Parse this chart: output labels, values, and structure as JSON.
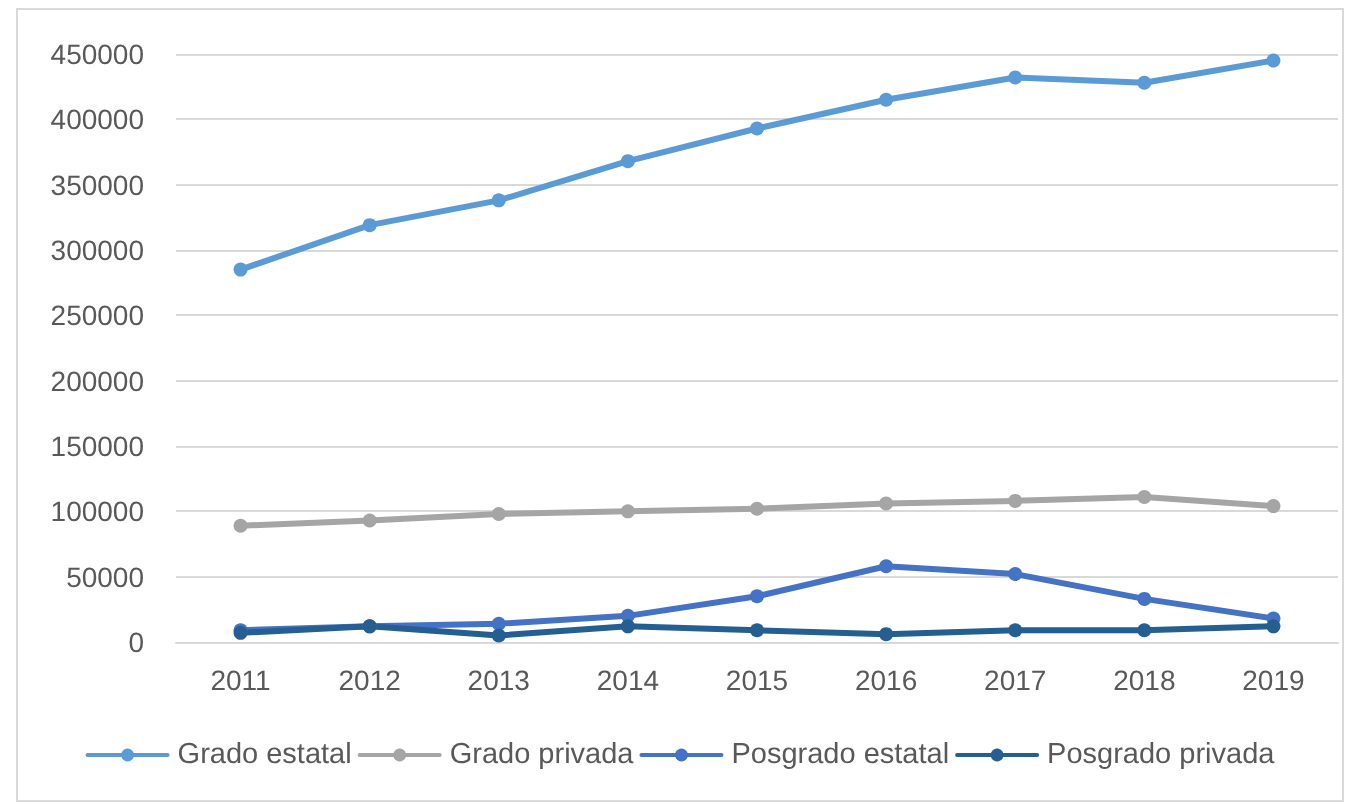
{
  "chart_data": {
    "type": "line",
    "categories": [
      "2011",
      "2012",
      "2013",
      "2014",
      "2015",
      "2016",
      "2017",
      "2018",
      "2019"
    ],
    "series": [
      {
        "name": "Grado estatal",
        "color": "#5b9bd5",
        "values": [
          285000,
          319000,
          338000,
          368000,
          393000,
          415000,
          432000,
          428000,
          445000
        ]
      },
      {
        "name": "Grado privada",
        "color": "#a5a5a5",
        "values": [
          89000,
          93000,
          98000,
          100000,
          102000,
          106000,
          108000,
          111000,
          104000
        ]
      },
      {
        "name": "Posgrado estatal",
        "color": "#4472c4",
        "values": [
          9000,
          12000,
          14000,
          20000,
          35000,
          58000,
          52000,
          33000,
          18000
        ]
      },
      {
        "name": "Posgrado privada",
        "color": "#255e91",
        "values": [
          7000,
          12000,
          5000,
          12000,
          9000,
          6000,
          9000,
          9000,
          12000
        ]
      }
    ],
    "ylim": [
      0,
      450000
    ],
    "yticks": [
      0,
      50000,
      100000,
      150000,
      200000,
      250000,
      300000,
      350000,
      400000,
      450000
    ],
    "grid": "y",
    "legend": "bottom",
    "marker": "circle",
    "line_style": "solid"
  }
}
